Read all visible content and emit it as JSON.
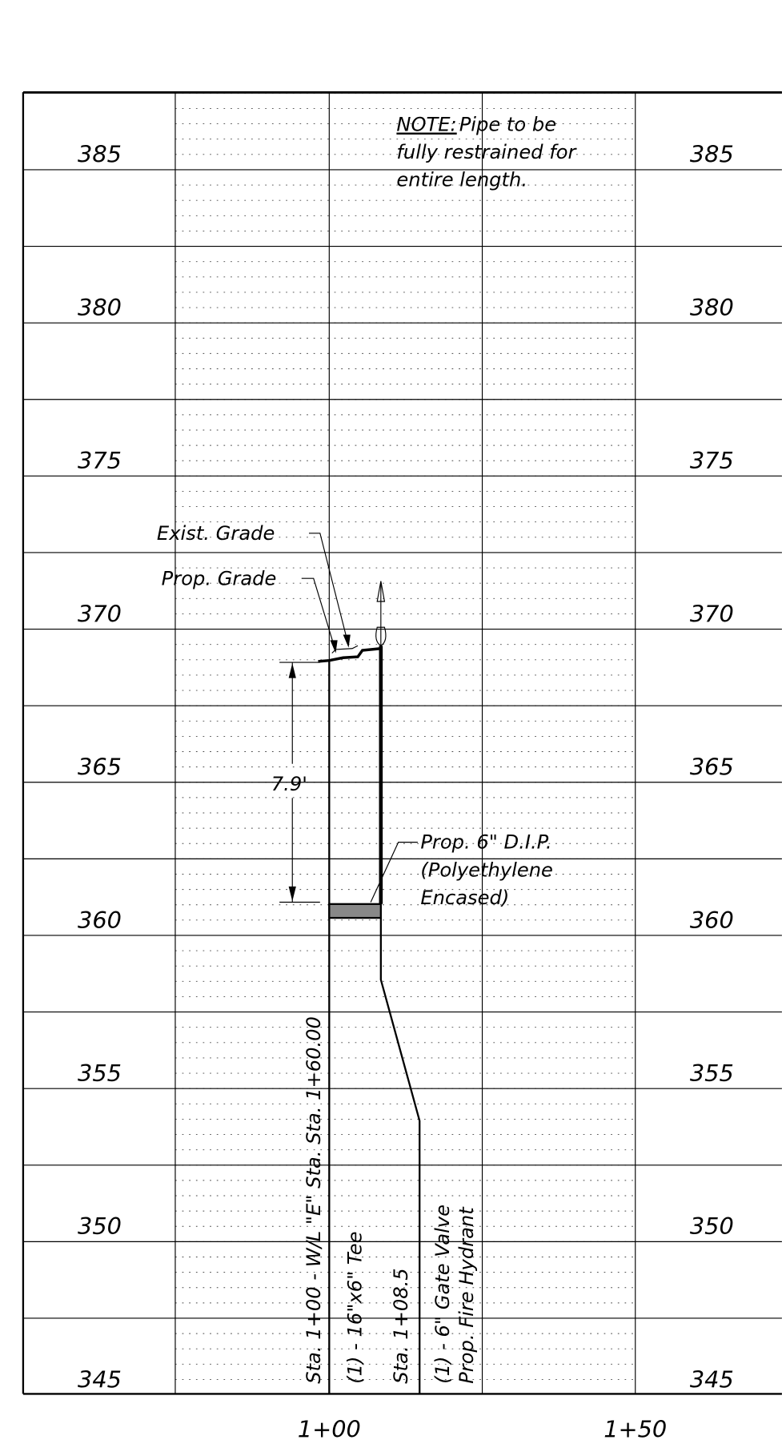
{
  "elevations": [
    "385",
    "380",
    "375",
    "370",
    "365",
    "360",
    "355",
    "350",
    "345"
  ],
  "stations": [
    "1+00",
    "1+50"
  ],
  "note": {
    "heading": "NOTE:",
    "lines": [
      "Pipe to be",
      "fully restrained for",
      "entire length."
    ]
  },
  "labels": {
    "exist_grade": "Exist. Grade",
    "prop_grade": "Prop. Grade",
    "depth": "7.9'",
    "pipe": [
      "Prop. 6\" D.I.P.",
      "(Polyethylene",
      "Encased)"
    ]
  },
  "callouts": [
    "Sta. 1+00 - W/L \"E\" Sta. Sta. 1+60.00",
    "(1) - 16\"x6\" Tee",
    "Sta. 1+08.5",
    "(1) - 6\" Gate Valve",
    "Prop. Fire Hydrant"
  ]
}
